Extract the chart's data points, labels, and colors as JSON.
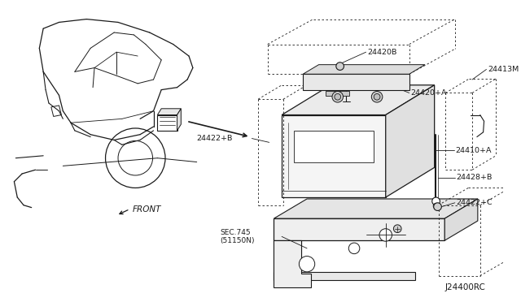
{
  "bg_color": "#ffffff",
  "line_color": "#1a1a1a",
  "text_color": "#1a1a1a",
  "diagram_id": "J24400RC",
  "label_24420B": "24420B",
  "label_24413M": "24413M",
  "label_24420A": "24420+A",
  "label_24422B": "24422+B",
  "label_24410A": "24410+A",
  "label_24428B": "24428+B",
  "label_24422C": "24422+C",
  "label_sec745": "SEC.745",
  "label_sec745b": "(51150N)",
  "label_front": "FRONT"
}
